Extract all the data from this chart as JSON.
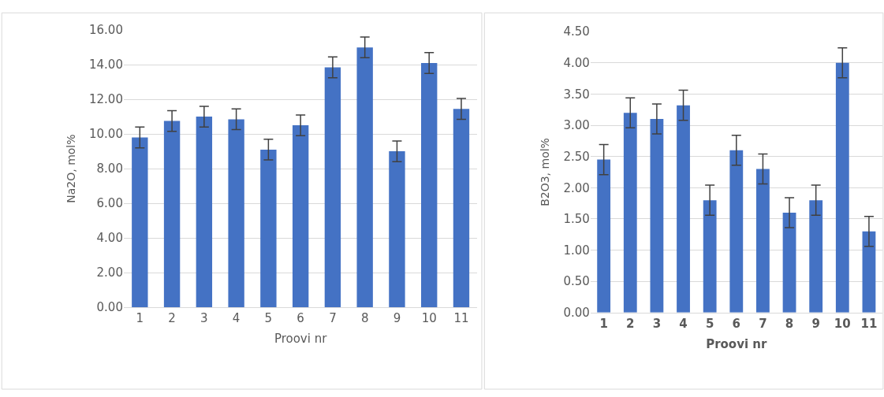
{
  "chart_data": [
    {
      "type": "bar",
      "xlabel": "Proovi nr",
      "ylabel": "Na2O, mol%",
      "categories": [
        "1",
        "2",
        "3",
        "4",
        "5",
        "6",
        "7",
        "8",
        "9",
        "10",
        "11"
      ],
      "color": "#4472c4",
      "values": [
        9.8,
        10.75,
        11.0,
        10.85,
        9.1,
        10.5,
        13.85,
        15.0,
        9.0,
        14.1,
        11.45
      ],
      "errors": [
        0.6,
        0.6,
        0.6,
        0.6,
        0.6,
        0.6,
        0.6,
        0.6,
        0.6,
        0.6,
        0.6
      ],
      "ylim": [
        0,
        16
      ],
      "yticks": [
        {
          "value": 0,
          "label": "0.00"
        },
        {
          "value": 2,
          "label": "2.00"
        },
        {
          "value": 4,
          "label": "4.00"
        },
        {
          "value": 6,
          "label": "6.00"
        },
        {
          "value": 8,
          "label": "8.00"
        },
        {
          "value": 10,
          "label": "10.00"
        },
        {
          "value": 12,
          "label": "12.00"
        },
        {
          "value": 14,
          "label": "14.00"
        },
        {
          "value": 16,
          "label": "16.00"
        }
      ],
      "grid": "y"
    },
    {
      "type": "bar",
      "xlabel": "Proovi nr",
      "ylabel": "B2O3, mol%",
      "categories": [
        "1",
        "2",
        "3",
        "4",
        "5",
        "6",
        "7",
        "8",
        "9",
        "10",
        "11"
      ],
      "color": "#4472c4",
      "values": [
        2.45,
        3.2,
        3.1,
        3.32,
        1.8,
        2.6,
        2.3,
        1.6,
        1.8,
        4.0,
        1.3
      ],
      "errors": [
        0.24,
        0.24,
        0.24,
        0.24,
        0.24,
        0.24,
        0.24,
        0.24,
        0.24,
        0.24,
        0.24
      ],
      "ylim": [
        0,
        4.5
      ],
      "yticks": [
        {
          "value": 0,
          "label": "0.00"
        },
        {
          "value": 0.5,
          "label": "0.50"
        },
        {
          "value": 1,
          "label": "1.00"
        },
        {
          "value": 1.5,
          "label": "1.50"
        },
        {
          "value": 2,
          "label": "2.00"
        },
        {
          "value": 2.5,
          "label": "2.50"
        },
        {
          "value": 3,
          "label": "3.00"
        },
        {
          "value": 3.5,
          "label": "3.50"
        },
        {
          "value": 4,
          "label": "4.00"
        },
        {
          "value": 4.5,
          "label": "4.50"
        }
      ],
      "grid": "y"
    }
  ]
}
